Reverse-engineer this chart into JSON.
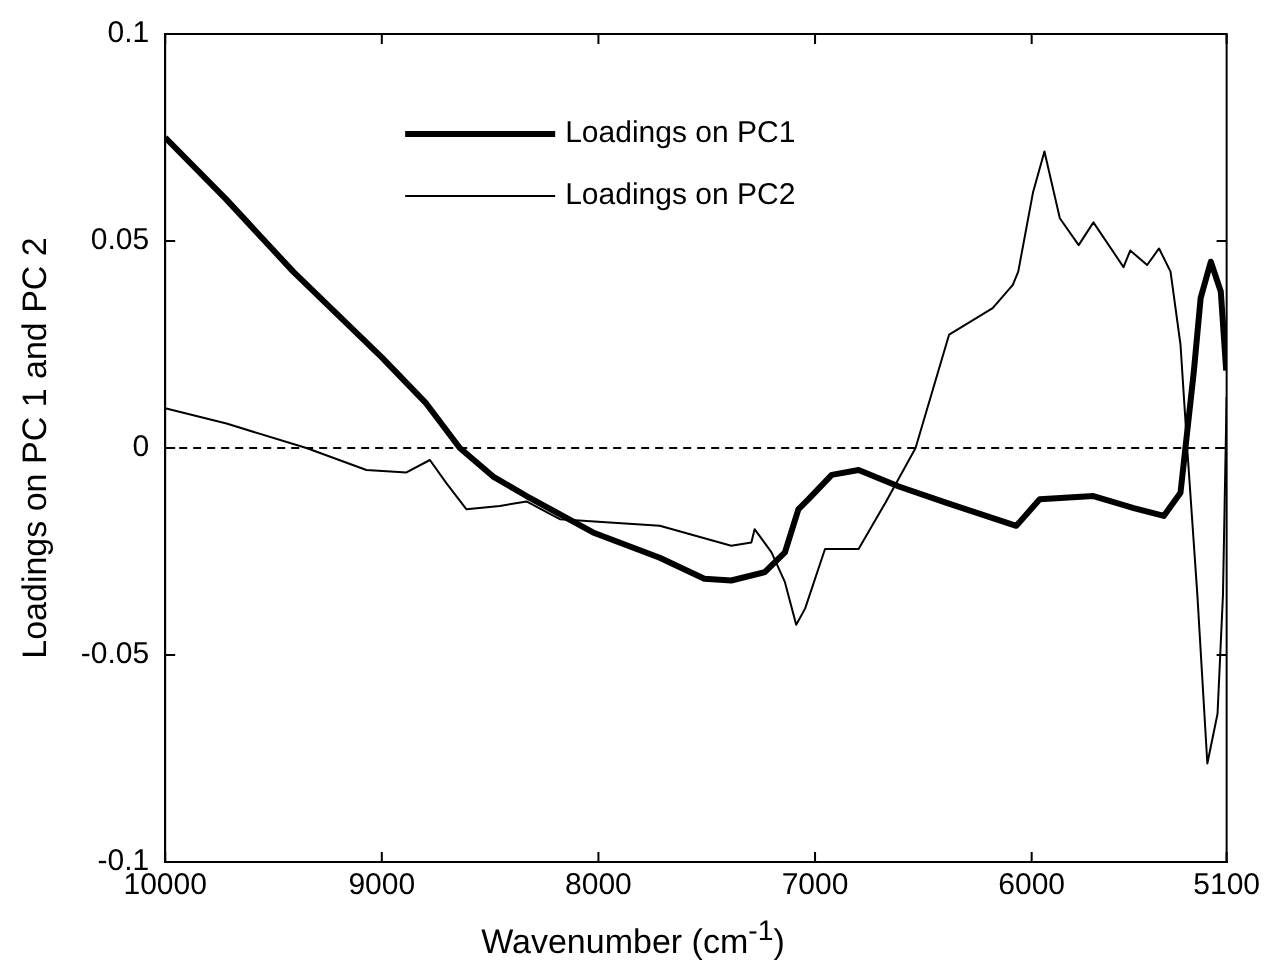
{
  "chart_data": {
    "type": "line",
    "xlabel": "Wavenumber (cm$^{-1}$)",
    "ylabel": "Loadings on PC 1 and PC 2",
    "xlim": [
      10000,
      5100
    ],
    "xticks": [
      10000,
      9000,
      8000,
      7000,
      6000,
      5100
    ],
    "ylim": [
      -0.1,
      0.1
    ],
    "yticks": [
      -0.1,
      -0.05,
      0,
      0.05,
      0.1
    ],
    "grid": false,
    "legend": "top left",
    "marker": "none",
    "ref_lines": [
      {
        "axis": "y",
        "value": 0,
        "line_style": "dashed",
        "color": "#000000"
      }
    ],
    "series": [
      {
        "name": "Loadings on PC1",
        "color": "#000000",
        "x": [
          10000,
          9717,
          9409,
          9000,
          8794,
          8640,
          8486,
          8332,
          8025,
          7717,
          7511,
          7387,
          7232,
          7139,
          7077,
          7031,
          6923,
          6799,
          6613,
          6396,
          6211,
          6071,
          5963,
          5715,
          5529,
          5390,
          5313,
          5251,
          5220,
          5173,
          5127,
          5102
        ],
        "values": [
          0.075,
          0.06,
          0.0426,
          0.0219,
          0.0107,
          0,
          -0.0069,
          -0.0116,
          -0.0204,
          -0.0265,
          -0.0316,
          -0.032,
          -0.03,
          -0.0252,
          -0.0148,
          -0.0124,
          -0.0065,
          -0.0053,
          -0.0093,
          -0.0132,
          -0.0164,
          -0.0188,
          -0.0124,
          -0.0116,
          -0.0145,
          -0.0164,
          -0.0108,
          0.0187,
          0.0362,
          0.045,
          0.0378,
          0.0187
        ]
      },
      {
        "name": "Loadings on PC2",
        "color": "#000000",
        "x": [
          10000,
          9717,
          9348,
          9071,
          8886,
          8778,
          8702,
          8609,
          8455,
          8332,
          8178,
          7717,
          7387,
          7294,
          7279,
          7201,
          7139,
          7087,
          7046,
          6954,
          6799,
          6675,
          6536,
          6381,
          6180,
          6087,
          6062,
          5994,
          5941,
          5870,
          5783,
          5715,
          5576,
          5545,
          5467,
          5412,
          5359,
          5313,
          5282,
          5235,
          5189,
          5142,
          5117,
          5100
        ],
        "values": [
          0.0096,
          0.0059,
          0,
          -0.0053,
          -0.0059,
          -0.0029,
          -0.0085,
          -0.0148,
          -0.014,
          -0.0129,
          -0.0172,
          -0.0188,
          -0.0236,
          -0.0228,
          -0.0196,
          -0.0252,
          -0.0324,
          -0.0427,
          -0.0388,
          -0.0244,
          -0.0244,
          -0.0132,
          0,
          0.0274,
          0.0338,
          0.0394,
          0.0426,
          0.0617,
          0.0716,
          0.0555,
          0.049,
          0.0545,
          0.0437,
          0.0477,
          0.0442,
          0.0482,
          0.0426,
          0.025,
          0,
          -0.0356,
          -0.0762,
          -0.0642,
          -0.0356,
          0.0123
        ]
      }
    ]
  }
}
